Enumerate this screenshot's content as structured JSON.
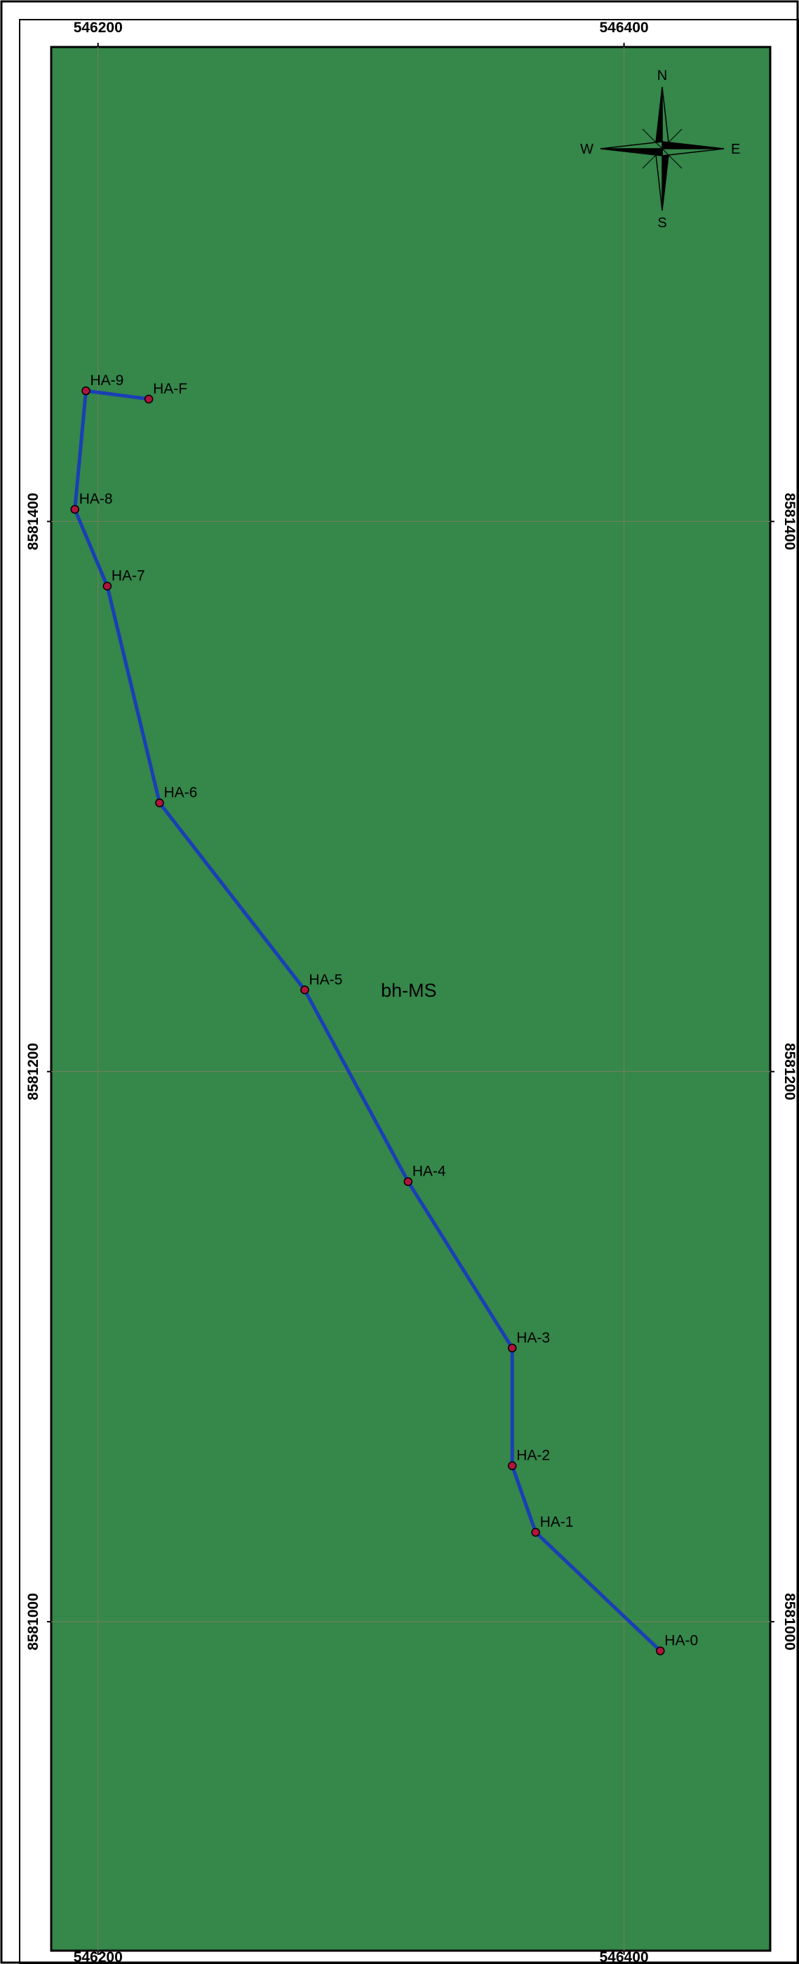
{
  "map": {
    "background_color": "#35874a",
    "grid_color": "#6f7f5f",
    "route_color": "#1a3fb5",
    "station_color": "#b0143c",
    "x_ticks": [
      {
        "value": 546200,
        "label": "546200"
      },
      {
        "value": 546400,
        "label": "546400"
      }
    ],
    "y_ticks": [
      {
        "value": 8581400,
        "label": "8581400"
      },
      {
        "value": 8581200,
        "label": "8581200"
      },
      {
        "value": 8581000,
        "label": "8581000"
      }
    ],
    "x_range": [
      546182.2,
      546455.6
    ],
    "y_range": [
      8580880.4,
      8581572.5
    ],
    "area_label": "bh-MS",
    "compass": {
      "north": "N",
      "south": "S",
      "east": "E",
      "west": "W"
    },
    "stations": [
      {
        "id": "HA-0",
        "x": 546413.8,
        "y": 8580989.4
      },
      {
        "id": "HA-1",
        "x": 546366.4,
        "y": 8581032.5
      },
      {
        "id": "HA-2",
        "x": 546357.5,
        "y": 8581056.7
      },
      {
        "id": "HA-3",
        "x": 546357.5,
        "y": 8581099.5
      },
      {
        "id": "HA-4",
        "x": 546317.9,
        "y": 8581160.0
      },
      {
        "id": "HA-5",
        "x": 546278.6,
        "y": 8581229.7
      },
      {
        "id": "HA-6",
        "x": 546223.4,
        "y": 8581297.7
      },
      {
        "id": "HA-7",
        "x": 546203.5,
        "y": 8581376.5
      },
      {
        "id": "HA-8",
        "x": 546191.2,
        "y": 8581404.4
      },
      {
        "id": "HA-9",
        "x": 546195.4,
        "y": 8581447.5
      },
      {
        "id": "HA-F",
        "x": 546219.3,
        "y": 8581444.5
      }
    ]
  }
}
